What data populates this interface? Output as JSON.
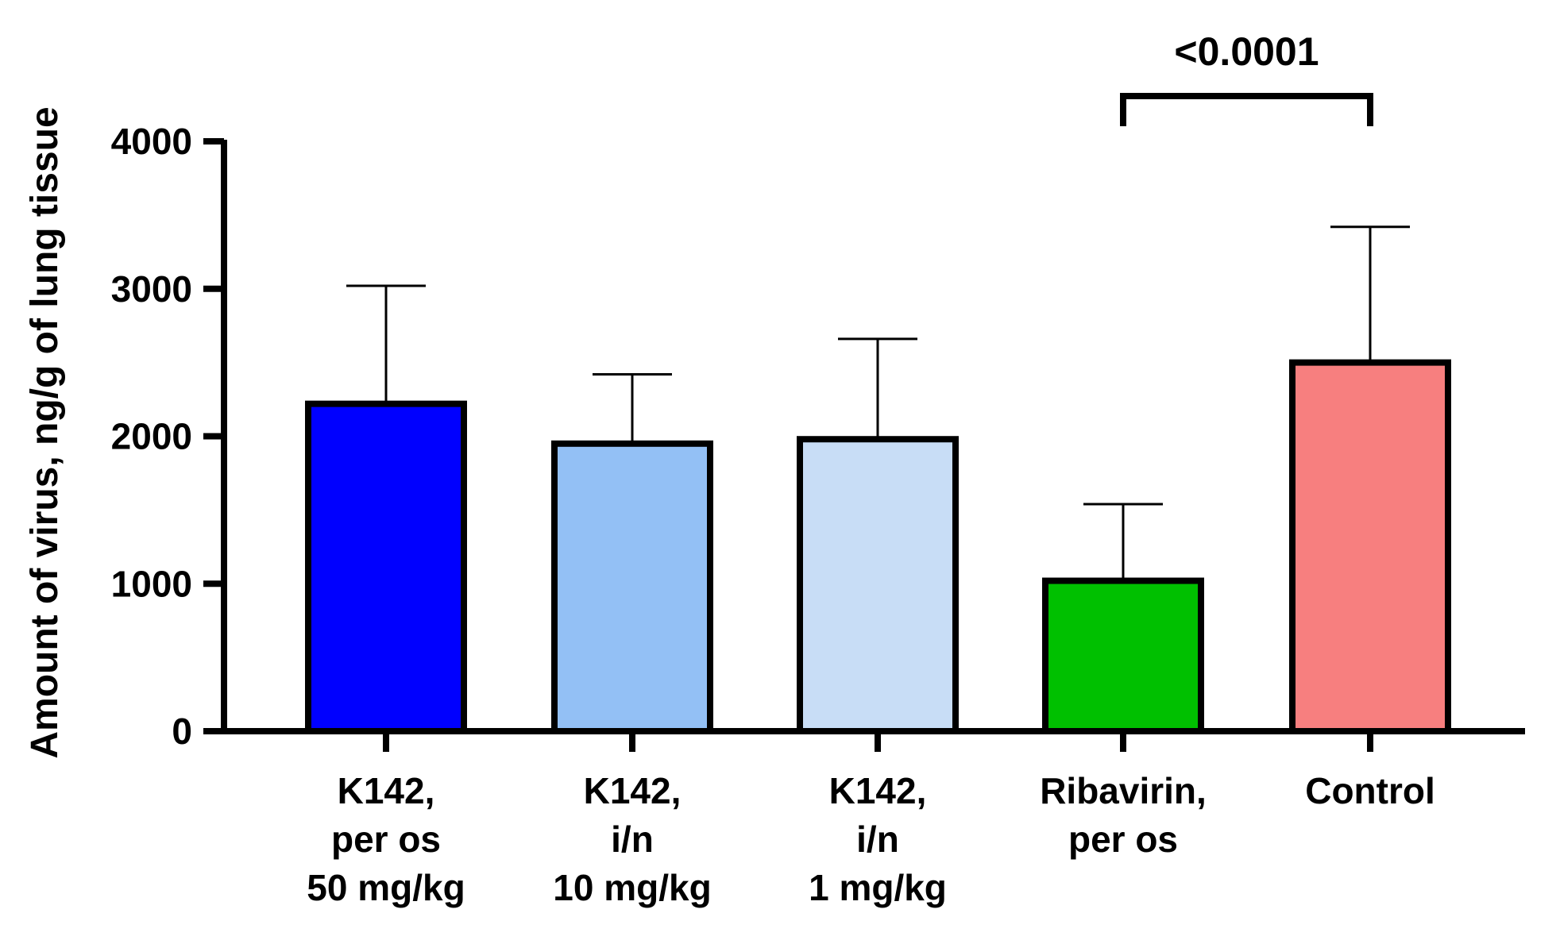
{
  "chart_data": {
    "type": "bar",
    "title": "",
    "xlabel": "",
    "ylabel": "Amount of virus, ng/g of lung tissue",
    "ylim": [
      0,
      4000
    ],
    "yticks": [
      0,
      1000,
      2000,
      3000,
      4000
    ],
    "grid": false,
    "categories": [
      [
        "K142,",
        "per os",
        "50 mg/kg"
      ],
      [
        "K142,",
        "i/n",
        "10 mg/kg"
      ],
      [
        "K142,",
        "i/n",
        "1 mg/kg"
      ],
      [
        "Ribavirin,",
        "per os"
      ],
      [
        "Control"
      ]
    ],
    "values": [
      2220,
      1950,
      1980,
      1020,
      2500
    ],
    "errors": [
      800,
      470,
      680,
      520,
      920
    ],
    "colors": [
      "#0000ff",
      "#93c0f5",
      "#c8ddf6",
      "#00c000",
      "#f77f7f"
    ],
    "annotations": [
      {
        "text": "<0.0001",
        "from": 3,
        "to": 4
      }
    ]
  }
}
